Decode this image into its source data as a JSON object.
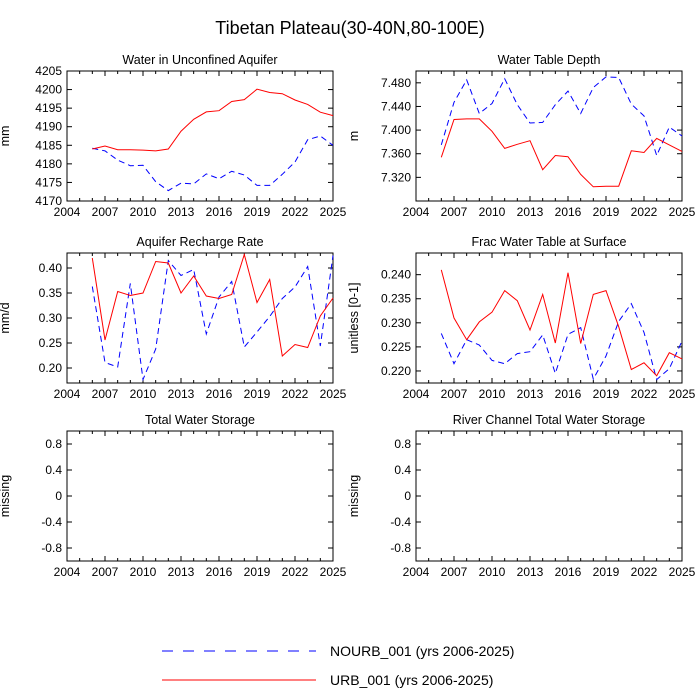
{
  "figure_title": "Tibetan Plateau(30-40N,80-100E)",
  "series_colors": {
    "NOURB_001": "#0000ff",
    "URB_001": "#ff0000"
  },
  "legend": [
    {
      "name": "NOURB_001",
      "label": "NOURB_001 (yrs 2006-2025)",
      "color": "#0000ff",
      "style": "dashed"
    },
    {
      "name": "URB_001",
      "label": "URB_001 (yrs 2006-2025)",
      "color": "#ff0000",
      "style": "solid"
    }
  ],
  "chart_data": [
    {
      "type": "line",
      "title": "Water in Unconfined Aquifer",
      "ylabel": "mm",
      "xlabel": "",
      "xlim": [
        2004,
        2025
      ],
      "ylim": [
        4170,
        4205
      ],
      "xticks": [
        "2004",
        "2007",
        "2010",
        "2013",
        "2016",
        "2019",
        "2022",
        "2025"
      ],
      "yticks": [
        "4170",
        "4175",
        "4180",
        "4185",
        "4190",
        "4195",
        "4200",
        "4205"
      ],
      "x": [
        2006,
        2007,
        2008,
        2009,
        2010,
        2011,
        2012,
        2013,
        2014,
        2015,
        2016,
        2017,
        2018,
        2019,
        2020,
        2021,
        2022,
        2023,
        2024,
        2025
      ],
      "series": [
        {
          "name": "NOURB_001",
          "style": "dashed",
          "values": [
            4184.2,
            4183.5,
            4181.0,
            4179.5,
            4179.6,
            4175.2,
            4172.8,
            4174.8,
            4174.6,
            4177.3,
            4176.0,
            4178.0,
            4177.0,
            4174.2,
            4174.2,
            4177.2,
            4180.5,
            4186.5,
            4187.5,
            4185.0
          ]
        },
        {
          "name": "URB_001",
          "style": "solid",
          "values": [
            4184.0,
            4184.8,
            4183.8,
            4183.8,
            4183.7,
            4183.5,
            4184.0,
            4188.8,
            4192.0,
            4194.0,
            4194.3,
            4196.8,
            4197.3,
            4200.1,
            4199.2,
            4198.9,
            4197.2,
            4196.0,
            4193.9,
            4193.0
          ]
        }
      ]
    },
    {
      "type": "line",
      "title": "Water Table Depth",
      "ylabel": "m",
      "xlabel": "",
      "xlim": [
        2004,
        2025
      ],
      "ylim": [
        7.28,
        7.5
      ],
      "xticks": [
        "2004",
        "2007",
        "2010",
        "2013",
        "2016",
        "2019",
        "2022",
        "2025"
      ],
      "yticks": [
        "7.320",
        "7.360",
        "7.400",
        "7.440",
        "7.480"
      ],
      "x": [
        2006,
        2007,
        2008,
        2009,
        2010,
        2011,
        2012,
        2013,
        2014,
        2015,
        2016,
        2017,
        2018,
        2019,
        2020,
        2021,
        2022,
        2023,
        2024,
        2025
      ],
      "series": [
        {
          "name": "NOURB_001",
          "style": "dashed",
          "values": [
            7.375,
            7.447,
            7.485,
            7.428,
            7.445,
            7.487,
            7.443,
            7.412,
            7.413,
            7.443,
            7.466,
            7.428,
            7.472,
            7.49,
            7.489,
            7.444,
            7.424,
            7.357,
            7.405,
            7.39
          ]
        },
        {
          "name": "URB_001",
          "style": "solid",
          "values": [
            7.354,
            7.418,
            7.419,
            7.419,
            7.398,
            7.369,
            7.376,
            7.382,
            7.333,
            7.357,
            7.355,
            7.325,
            7.304,
            7.305,
            7.305,
            7.365,
            7.362,
            7.386,
            7.375,
            7.364
          ]
        }
      ]
    },
    {
      "type": "line",
      "title": "Aquifer Recharge Rate",
      "ylabel": "mm/d",
      "xlabel": "",
      "xlim": [
        2004,
        2025
      ],
      "ylim": [
        0.17,
        0.43
      ],
      "xticks": [
        "2004",
        "2007",
        "2010",
        "2013",
        "2016",
        "2019",
        "2022",
        "2025"
      ],
      "yticks": [
        "0.20",
        "0.25",
        "0.30",
        "0.35",
        "0.40"
      ],
      "x": [
        2006,
        2007,
        2008,
        2009,
        2010,
        2011,
        2012,
        2013,
        2014,
        2015,
        2016,
        2017,
        2018,
        2019,
        2020,
        2021,
        2022,
        2023,
        2024,
        2025
      ],
      "series": [
        {
          "name": "NOURB_001",
          "style": "dashed",
          "values": [
            0.363,
            0.211,
            0.202,
            0.369,
            0.177,
            0.238,
            0.415,
            0.385,
            0.397,
            0.268,
            0.342,
            0.373,
            0.242,
            0.272,
            0.303,
            0.339,
            0.362,
            0.403,
            0.244,
            0.425
          ]
        },
        {
          "name": "URB_001",
          "style": "solid",
          "values": [
            0.42,
            0.256,
            0.353,
            0.345,
            0.35,
            0.413,
            0.41,
            0.35,
            0.384,
            0.344,
            0.339,
            0.347,
            0.427,
            0.331,
            0.377,
            0.224,
            0.247,
            0.241,
            0.304,
            0.34
          ]
        }
      ]
    },
    {
      "type": "line",
      "title": "Frac Water Table at Surface",
      "ylabel": "unitless [0-1]",
      "xlabel": "",
      "xlim": [
        2004,
        2025
      ],
      "ylim": [
        0.2175,
        0.2445
      ],
      "xticks": [
        "2004",
        "2007",
        "2010",
        "2013",
        "2016",
        "2019",
        "2022",
        "2025"
      ],
      "yticks": [
        "0.220",
        "0.225",
        "0.230",
        "0.235",
        "0.240"
      ],
      "x": [
        2006,
        2007,
        2008,
        2009,
        2010,
        2011,
        2012,
        2013,
        2014,
        2015,
        2016,
        2017,
        2018,
        2019,
        2020,
        2021,
        2022,
        2023,
        2024,
        2025
      ],
      "series": [
        {
          "name": "NOURB_001",
          "style": "dashed",
          "values": [
            0.2278,
            0.2215,
            0.2265,
            0.2254,
            0.2222,
            0.2215,
            0.2236,
            0.224,
            0.2275,
            0.2195,
            0.2276,
            0.229,
            0.2183,
            0.2231,
            0.2303,
            0.234,
            0.228,
            0.2182,
            0.2205,
            0.2262
          ]
        },
        {
          "name": "URB_001",
          "style": "solid",
          "values": [
            0.241,
            0.231,
            0.2265,
            0.2302,
            0.2322,
            0.2367,
            0.2346,
            0.2285,
            0.2359,
            0.2258,
            0.2404,
            0.2257,
            0.2359,
            0.2367,
            0.2292,
            0.2203,
            0.2217,
            0.219,
            0.2238,
            0.2225
          ]
        }
      ]
    },
    {
      "type": "line",
      "title": "Total Water Storage",
      "ylabel": "missing",
      "xlabel": "",
      "xlim": [
        2004,
        2025
      ],
      "ylim": [
        -1,
        1
      ],
      "xticks": [
        "2004",
        "2007",
        "2010",
        "2013",
        "2016",
        "2019",
        "2022",
        "2025"
      ],
      "yticks": [
        "-0.8",
        "-0.4",
        "0",
        "0.4",
        "0.8"
      ],
      "x": [],
      "series": []
    },
    {
      "type": "line",
      "title": "River Channel Total Water Storage",
      "ylabel": "missing",
      "xlabel": "",
      "xlim": [
        2004,
        2025
      ],
      "ylim": [
        -1,
        1
      ],
      "xticks": [
        "2004",
        "2007",
        "2010",
        "2013",
        "2016",
        "2019",
        "2022",
        "2025"
      ],
      "yticks": [
        "-0.8",
        "-0.4",
        "0",
        "0.4",
        "0.8"
      ],
      "x": [],
      "series": []
    }
  ]
}
